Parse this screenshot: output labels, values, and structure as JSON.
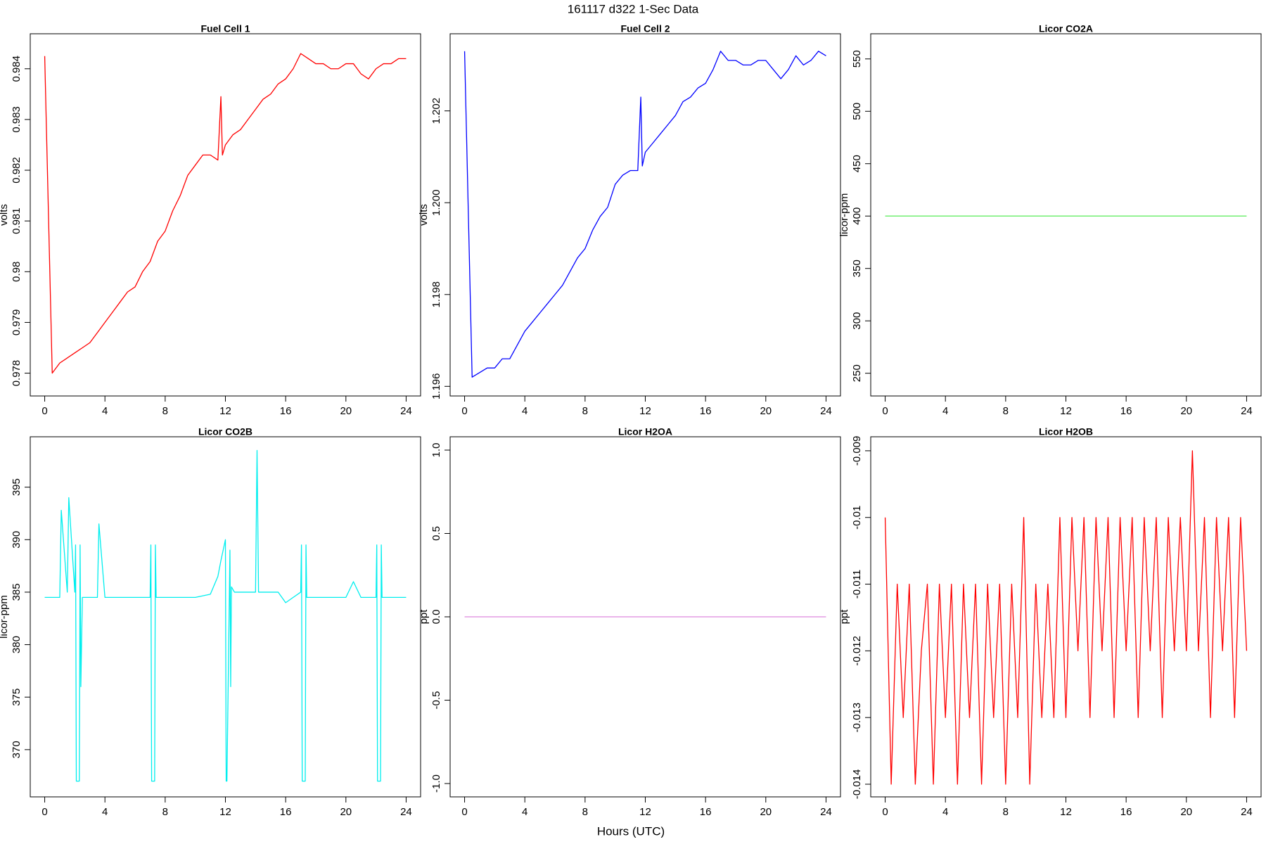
{
  "title": "161117   d322   1-Sec Data",
  "xlabel": "Hours (UTC)",
  "chart_data": [
    {
      "type": "line",
      "title": "Fuel Cell 1",
      "ylabel": "volts",
      "color": "#ff0000",
      "x": [
        0,
        0.5,
        1,
        1.5,
        2,
        2.5,
        3,
        3.5,
        4,
        4.5,
        5,
        5.5,
        6,
        6.5,
        7,
        7.5,
        8,
        8.5,
        9,
        9.5,
        10,
        10.5,
        11,
        11.5,
        11.7,
        11.8,
        12,
        12.5,
        13,
        13.5,
        14,
        14.5,
        15,
        15.5,
        16,
        16.5,
        17,
        17.5,
        18,
        18.5,
        19,
        19.5,
        20,
        20.5,
        21,
        21.5,
        22,
        22.5,
        23,
        23.5,
        24
      ],
      "values": [
        0.98425,
        0.978,
        0.9782,
        0.9783,
        0.9784,
        0.9785,
        0.9786,
        0.9788,
        0.979,
        0.9792,
        0.9794,
        0.9796,
        0.9797,
        0.98,
        0.9802,
        0.9806,
        0.9808,
        0.9812,
        0.9815,
        0.9819,
        0.9821,
        0.9823,
        0.9823,
        0.9822,
        0.98345,
        0.9823,
        0.9825,
        0.9827,
        0.9828,
        0.983,
        0.9832,
        0.9834,
        0.9835,
        0.9837,
        0.9838,
        0.984,
        0.9843,
        0.9842,
        0.9841,
        0.9841,
        0.984,
        0.984,
        0.9841,
        0.9841,
        0.9839,
        0.9838,
        0.984,
        0.9841,
        0.9841,
        0.9842,
        0.9842
      ],
      "xlim": [
        -0.96,
        24.96
      ],
      "ylim": [
        0.97755,
        0.98469
      ],
      "xticks": [
        0,
        4,
        8,
        12,
        16,
        20,
        24
      ],
      "yticks": [
        0.978,
        0.979,
        0.98,
        0.981,
        0.982,
        0.983,
        0.984
      ]
    },
    {
      "type": "line",
      "title": "Fuel Cell 2",
      "ylabel": "volts",
      "color": "#0000ff",
      "x": [
        0,
        0.5,
        1,
        1.5,
        2,
        2.5,
        3,
        3.5,
        4,
        4.5,
        5,
        5.5,
        6,
        6.5,
        7,
        7.5,
        8,
        8.5,
        9,
        9.5,
        10,
        10.5,
        11,
        11.5,
        11.7,
        11.8,
        12,
        12.5,
        13,
        13.5,
        14,
        14.5,
        15,
        15.5,
        16,
        16.5,
        17,
        17.5,
        18,
        18.5,
        19,
        19.5,
        20,
        20.5,
        21,
        21.5,
        22,
        22.5,
        23,
        23.5,
        24
      ],
      "values": [
        1.2033,
        1.1962,
        1.1963,
        1.1964,
        1.1964,
        1.1966,
        1.1966,
        1.1969,
        1.1972,
        1.1974,
        1.1976,
        1.1978,
        1.198,
        1.1982,
        1.1985,
        1.1988,
        1.199,
        1.1994,
        1.1997,
        1.1999,
        1.2004,
        1.2006,
        1.2007,
        1.2007,
        1.2023,
        1.2008,
        1.2011,
        1.2013,
        1.2015,
        1.2017,
        1.2019,
        1.2022,
        1.2023,
        1.2025,
        1.2026,
        1.2029,
        1.2033,
        1.2031,
        1.2031,
        1.203,
        1.203,
        1.2031,
        1.2031,
        1.2029,
        1.2027,
        1.2029,
        1.2032,
        1.203,
        1.2031,
        1.2033,
        1.2032
      ],
      "xlim": [
        -0.96,
        24.96
      ],
      "ylim": [
        1.19579,
        1.20368
      ],
      "xticks": [
        0,
        4,
        8,
        12,
        16,
        20,
        24
      ],
      "yticks": [
        {
          "value": 1.196,
          "label": "1.196"
        },
        {
          "value": 1.198,
          "label": "1.198"
        },
        {
          "value": 1.2,
          "label": "1.200"
        },
        {
          "value": 1.202,
          "label": "1.202"
        }
      ]
    },
    {
      "type": "line",
      "title": "Licor CO2A",
      "ylabel": "licor-ppm",
      "color": "#66ee66",
      "x": [
        0,
        24
      ],
      "values": [
        400,
        400
      ],
      "xlim": [
        -0.96,
        24.96
      ],
      "ylim": [
        228.3,
        574
      ],
      "xticks": [
        0,
        4,
        8,
        12,
        16,
        20,
        24
      ],
      "yticks": [
        250,
        300,
        350,
        400,
        450,
        500,
        550
      ]
    },
    {
      "type": "line",
      "title": "Licor CO2B",
      "ylabel": "licor-ppm",
      "color": "#00eeee",
      "x": [
        0,
        0.5,
        1,
        1.1,
        1.5,
        1.6,
        2,
        2.05,
        2.1,
        2.3,
        2.35,
        2.4,
        2.5,
        3,
        3.5,
        3.6,
        4,
        5,
        6,
        7,
        7.05,
        7.1,
        7.3,
        7.35,
        7.4,
        8,
        9,
        10,
        11,
        11.5,
        11.7,
        12,
        12.05,
        12.1,
        12.3,
        12.35,
        12.4,
        12.6,
        13,
        14,
        14.1,
        14.2,
        15,
        15.5,
        16,
        16.5,
        17,
        17.05,
        17.1,
        17.3,
        17.35,
        17.4,
        18,
        19,
        20,
        20.5,
        21,
        22,
        22.05,
        22.1,
        22.3,
        22.35,
        22.4,
        23,
        24
      ],
      "values": [
        384.5,
        384.5,
        384.5,
        392.8,
        385,
        394,
        385,
        389.5,
        367,
        367,
        389.5,
        376,
        384.5,
        384.5,
        384.5,
        391.5,
        384.5,
        384.5,
        384.5,
        384.5,
        389.5,
        367,
        367,
        389.5,
        384.5,
        384.5,
        384.5,
        384.5,
        384.8,
        386.5,
        388,
        390,
        367,
        367,
        389,
        376,
        385.5,
        385,
        385,
        385,
        398.5,
        385,
        385,
        385,
        384,
        384.5,
        385,
        389.5,
        367,
        367,
        389.5,
        384.5,
        384.5,
        384.5,
        384.5,
        386,
        384.5,
        384.5,
        389.5,
        367,
        367,
        389.5,
        384.5,
        384.5,
        384.5
      ],
      "xlim": [
        -0.96,
        24.96
      ],
      "ylim": [
        365.5,
        399.8
      ],
      "xticks": [
        0,
        4,
        8,
        12,
        16,
        20,
        24
      ],
      "yticks": [
        370,
        375,
        380,
        385,
        390,
        395
      ]
    },
    {
      "type": "line",
      "title": "Licor H2OA",
      "ylabel": "ppt",
      "color": "#dd88dd",
      "x": [
        0,
        24
      ],
      "values": [
        0,
        0
      ],
      "xlim": [
        -0.96,
        24.96
      ],
      "ylim": [
        -1.08,
        1.08
      ],
      "xticks": [
        0,
        4,
        8,
        12,
        16,
        20,
        24
      ],
      "yticks": [
        {
          "value": -1,
          "label": "-1.0"
        },
        {
          "value": -0.5,
          "label": "-0.5"
        },
        {
          "value": 0,
          "label": "0.0"
        },
        {
          "value": 0.5,
          "label": "0.5"
        },
        {
          "value": 1,
          "label": "1.0"
        }
      ]
    },
    {
      "type": "line",
      "title": "Licor H2OB",
      "ylabel": "ppt",
      "color": "#ff0000",
      "x": [
        0,
        0.4,
        0.8,
        1.2,
        1.6,
        2,
        2.4,
        2.8,
        3.2,
        3.6,
        4,
        4.4,
        4.8,
        5.2,
        5.6,
        6,
        6.4,
        6.8,
        7.2,
        7.6,
        8,
        8.4,
        8.8,
        9.2,
        9.6,
        10,
        10.4,
        10.8,
        11.2,
        11.6,
        12,
        12.4,
        12.8,
        13.2,
        13.6,
        14,
        14.4,
        14.8,
        15.2,
        15.6,
        16,
        16.4,
        16.8,
        17.2,
        17.6,
        18,
        18.4,
        18.8,
        19.2,
        19.6,
        20,
        20.4,
        20.8,
        21.2,
        21.6,
        22,
        22.4,
        22.8,
        23.2,
        23.6,
        24
      ],
      "values": [
        -0.01,
        -0.014,
        -0.011,
        -0.013,
        -0.011,
        -0.014,
        -0.012,
        -0.011,
        -0.014,
        -0.011,
        -0.013,
        -0.011,
        -0.014,
        -0.011,
        -0.013,
        -0.011,
        -0.014,
        -0.011,
        -0.013,
        -0.011,
        -0.014,
        -0.011,
        -0.013,
        -0.01,
        -0.014,
        -0.011,
        -0.013,
        -0.011,
        -0.013,
        -0.01,
        -0.013,
        -0.01,
        -0.012,
        -0.01,
        -0.013,
        -0.01,
        -0.012,
        -0.01,
        -0.013,
        -0.01,
        -0.012,
        -0.01,
        -0.013,
        -0.01,
        -0.012,
        -0.01,
        -0.013,
        -0.01,
        -0.012,
        -0.01,
        -0.012,
        -0.009,
        -0.012,
        -0.01,
        -0.013,
        -0.01,
        -0.012,
        -0.01,
        -0.013,
        -0.01,
        -0.012
      ],
      "xlim": [
        -0.96,
        24.96
      ],
      "ylim": [
        -0.01419,
        -0.00879
      ],
      "xticks": [
        0,
        4,
        8,
        12,
        16,
        20,
        24
      ],
      "yticks": [
        -0.014,
        -0.013,
        -0.012,
        -0.011,
        -0.01,
        -0.009
      ]
    }
  ]
}
